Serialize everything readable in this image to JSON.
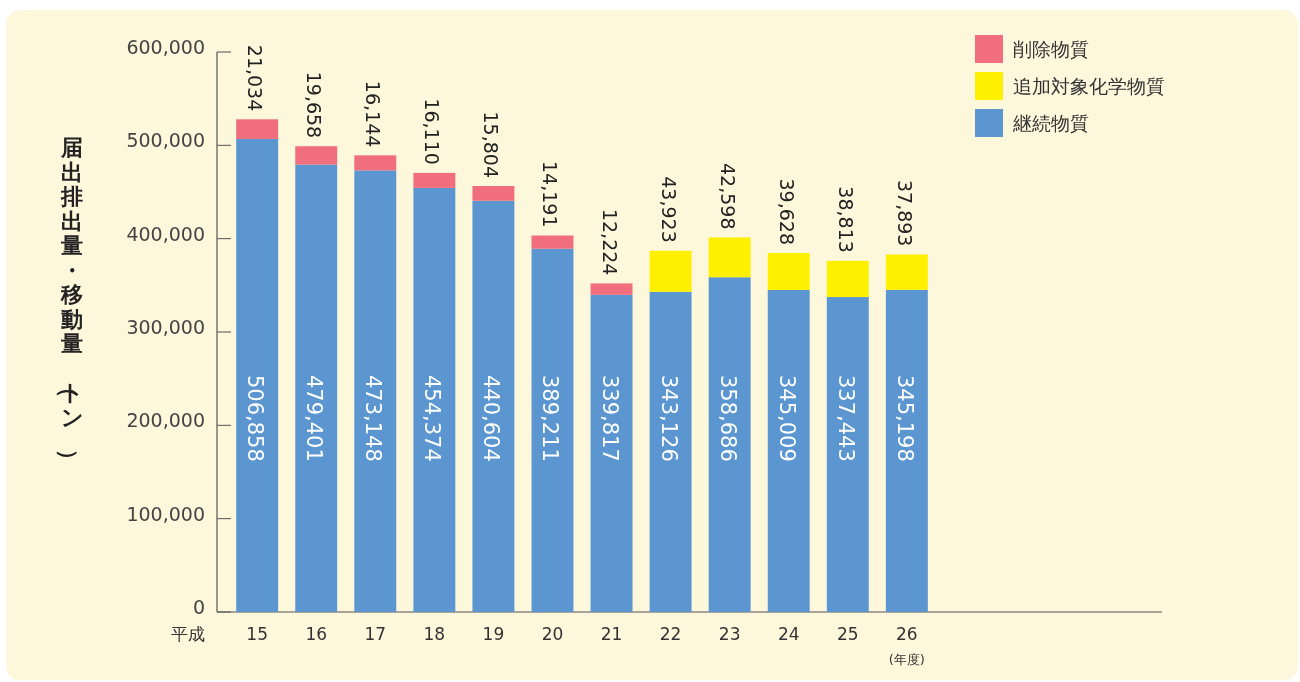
{
  "chart_data": {
    "type": "bar",
    "stacked": true,
    "ylabel": "届出排出量・移動量（トン）",
    "categories": [
      "15",
      "16",
      "17",
      "18",
      "19",
      "20",
      "21",
      "22",
      "23",
      "24",
      "25",
      "26"
    ],
    "series": [
      {
        "name": "継続物質",
        "color": "#5b96d0",
        "values": [
          506858,
          479401,
          473148,
          454374,
          440604,
          389211,
          339817,
          343126,
          358686,
          345009,
          337443,
          345198
        ],
        "value_labels": [
          "506,858",
          "479,401",
          "473,148",
          "454,374",
          "440,604",
          "389,211",
          "339,817",
          "343,126",
          "358,686",
          "345,009",
          "337,443",
          "345,198"
        ]
      },
      {
        "name": "追加対象化学物質",
        "color": "#fff000",
        "values": [
          null,
          null,
          null,
          null,
          null,
          null,
          null,
          43923,
          42598,
          39628,
          38813,
          37893
        ],
        "value_labels": [
          null,
          null,
          null,
          null,
          null,
          null,
          null,
          "43,923",
          "42,598",
          "39,628",
          "38,813",
          "37,893"
        ]
      },
      {
        "name": "削除物質",
        "color": "#f06e7e",
        "values": [
          21034,
          19658,
          16144,
          16110,
          15804,
          14191,
          12224,
          null,
          null,
          null,
          null,
          null
        ],
        "value_labels": [
          "21,034",
          "19,658",
          "16,144",
          "16,110",
          "15,804",
          "14,191",
          "12,224",
          null,
          null,
          null,
          null,
          null
        ]
      }
    ],
    "ylim": [
      0,
      600000
    ],
    "yticks": [
      {
        "value": 0,
        "label": "0"
      },
      {
        "value": 100000,
        "label": "100,000"
      },
      {
        "value": 200000,
        "label": "200,000"
      },
      {
        "value": 300000,
        "label": "300,000"
      },
      {
        "value": 400000,
        "label": "400,000"
      },
      {
        "value": 500000,
        "label": "500,000"
      },
      {
        "value": 600000,
        "label": "600,000"
      }
    ],
    "legend": "top right",
    "grid": false,
    "annotations": [
      "平成",
      "(年度)"
    ]
  }
}
